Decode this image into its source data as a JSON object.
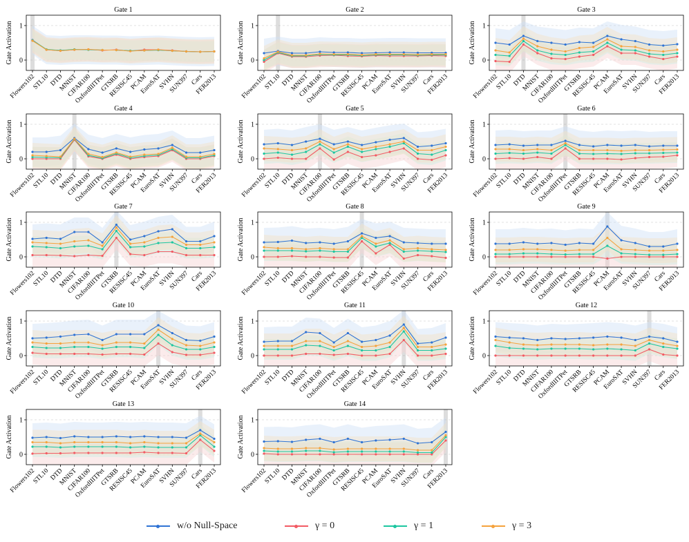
{
  "colors": {
    "wo": "#2f73d4",
    "g0": "#f25a63",
    "g1": "#1cc6a0",
    "g3": "#f5a23c",
    "band_wo": "#cfe0f7",
    "band_g0": "#f7d3d3",
    "band_g1": "#cdeee3",
    "band_g3": "#f5e2c6",
    "highlight": "#9e9e9e",
    "grid": "#d6d6d6"
  },
  "legend": {
    "wo": "w/o Null-Space",
    "g0": "γ = 0",
    "g1": "γ = 1",
    "g3": "γ = 3"
  },
  "chart_data": {
    "type": "line",
    "ylabel": "Gate Activation",
    "ylim": [
      -0.3,
      1.3
    ],
    "yticks": [
      0,
      1
    ],
    "categories": [
      "Flowers102",
      "STL10",
      "DTD",
      "MNIST",
      "CIFAR100",
      "OxfordIIITPet",
      "GTSRB",
      "RESISC45",
      "PCAM",
      "EuroSAT",
      "SVHN",
      "SUN397",
      "Cars",
      "FER2013"
    ],
    "series_names": [
      "w/o Null-Space",
      "γ = 0",
      "γ = 1",
      "γ = 3"
    ],
    "panels": [
      {
        "title": "Gate 1",
        "highlight": 0,
        "series": {
          "wo": [
            0.58,
            0.3,
            0.28,
            0.3,
            0.3,
            0.29,
            0.29,
            0.27,
            0.28,
            0.29,
            0.27,
            0.25,
            0.24,
            0.25
          ],
          "g0": [
            0.57,
            0.3,
            0.27,
            0.3,
            0.31,
            0.28,
            0.3,
            0.26,
            0.3,
            0.3,
            0.28,
            0.25,
            0.24,
            0.25
          ],
          "g1": [
            0.57,
            0.31,
            0.28,
            0.31,
            0.3,
            0.29,
            0.29,
            0.27,
            0.28,
            0.29,
            0.27,
            0.25,
            0.24,
            0.25
          ],
          "g3": [
            0.56,
            0.3,
            0.27,
            0.3,
            0.31,
            0.29,
            0.29,
            0.26,
            0.28,
            0.3,
            0.27,
            0.25,
            0.24,
            0.25
          ]
        }
      },
      {
        "title": "Gate 2",
        "highlight": 1,
        "series": {
          "wo": [
            0.2,
            0.26,
            0.2,
            0.2,
            0.24,
            0.22,
            0.22,
            0.2,
            0.21,
            0.22,
            0.22,
            0.21,
            0.21,
            0.21
          ],
          "g0": [
            -0.05,
            0.2,
            0.1,
            0.1,
            0.13,
            0.14,
            0.12,
            0.11,
            0.13,
            0.12,
            0.12,
            0.12,
            0.13,
            0.12
          ],
          "g1": [
            0.0,
            0.22,
            0.12,
            0.12,
            0.16,
            0.15,
            0.15,
            0.13,
            0.15,
            0.15,
            0.15,
            0.14,
            0.15,
            0.15
          ],
          "g3": [
            0.05,
            0.24,
            0.14,
            0.14,
            0.18,
            0.17,
            0.17,
            0.15,
            0.17,
            0.17,
            0.17,
            0.16,
            0.17,
            0.17
          ]
        }
      },
      {
        "title": "Gate 3",
        "highlight": 2,
        "series": {
          "wo": [
            0.5,
            0.45,
            0.7,
            0.55,
            0.5,
            0.45,
            0.52,
            0.5,
            0.7,
            0.6,
            0.55,
            0.45,
            0.42,
            0.46
          ],
          "g0": [
            -0.03,
            -0.05,
            0.45,
            0.2,
            0.05,
            0.03,
            0.1,
            0.15,
            0.4,
            0.2,
            0.2,
            0.1,
            0.03,
            0.1
          ],
          "g1": [
            0.15,
            0.12,
            0.55,
            0.28,
            0.18,
            0.15,
            0.22,
            0.25,
            0.5,
            0.3,
            0.28,
            0.18,
            0.15,
            0.2
          ],
          "g3": [
            0.28,
            0.22,
            0.62,
            0.4,
            0.3,
            0.25,
            0.35,
            0.38,
            0.6,
            0.4,
            0.38,
            0.28,
            0.25,
            0.3
          ]
        }
      },
      {
        "title": "Gate 4",
        "highlight": 3,
        "series": {
          "wo": [
            0.2,
            0.2,
            0.25,
            0.6,
            0.28,
            0.18,
            0.3,
            0.2,
            0.27,
            0.3,
            0.4,
            0.18,
            0.18,
            0.25
          ],
          "g0": [
            0.0,
            0.0,
            0.0,
            0.55,
            0.07,
            0.0,
            0.12,
            0.0,
            0.05,
            0.08,
            0.25,
            0.0,
            0.0,
            0.08
          ],
          "g1": [
            0.05,
            0.04,
            0.03,
            0.57,
            0.1,
            0.02,
            0.15,
            0.03,
            0.08,
            0.11,
            0.28,
            0.03,
            0.03,
            0.1
          ],
          "g3": [
            0.1,
            0.08,
            0.06,
            0.58,
            0.14,
            0.05,
            0.18,
            0.06,
            0.12,
            0.14,
            0.32,
            0.06,
            0.06,
            0.14
          ]
        }
      },
      {
        "title": "Gate 5",
        "highlight": 4,
        "series": {
          "wo": [
            0.42,
            0.45,
            0.4,
            0.5,
            0.58,
            0.42,
            0.5,
            0.4,
            0.48,
            0.55,
            0.6,
            0.35,
            0.38,
            0.45
          ],
          "g0": [
            0.0,
            0.03,
            0.0,
            0.0,
            0.3,
            -0.02,
            0.2,
            0.05,
            0.1,
            0.2,
            0.3,
            0.0,
            -0.03,
            0.1
          ],
          "g1": [
            0.15,
            0.18,
            0.12,
            0.2,
            0.42,
            0.18,
            0.35,
            0.2,
            0.28,
            0.35,
            0.45,
            0.15,
            0.12,
            0.25
          ],
          "g3": [
            0.3,
            0.28,
            0.25,
            0.3,
            0.5,
            0.28,
            0.42,
            0.28,
            0.35,
            0.42,
            0.5,
            0.25,
            0.25,
            0.35
          ]
        }
      },
      {
        "title": "Gate 6",
        "highlight": 5,
        "series": {
          "wo": [
            0.4,
            0.42,
            0.38,
            0.4,
            0.4,
            0.52,
            0.4,
            0.36,
            0.4,
            0.38,
            0.4,
            0.36,
            0.38,
            0.38
          ],
          "g0": [
            0.0,
            0.02,
            0.0,
            0.05,
            0.0,
            0.3,
            0.0,
            0.0,
            0.0,
            -0.02,
            0.02,
            0.05,
            0.06,
            0.1
          ],
          "g1": [
            0.15,
            0.17,
            0.15,
            0.18,
            0.15,
            0.4,
            0.15,
            0.14,
            0.15,
            0.14,
            0.16,
            0.16,
            0.17,
            0.18
          ],
          "g3": [
            0.28,
            0.28,
            0.25,
            0.28,
            0.25,
            0.45,
            0.25,
            0.25,
            0.25,
            0.23,
            0.25,
            0.25,
            0.26,
            0.27
          ]
        }
      },
      {
        "title": "Gate 7",
        "highlight": 6,
        "series": {
          "wo": [
            0.52,
            0.55,
            0.52,
            0.72,
            0.72,
            0.42,
            0.93,
            0.5,
            0.6,
            0.74,
            0.8,
            0.45,
            0.45,
            0.6
          ],
          "g0": [
            0.05,
            0.05,
            0.04,
            0.02,
            0.05,
            0.03,
            0.55,
            0.08,
            0.05,
            0.15,
            0.15,
            0.05,
            0.05,
            0.05
          ],
          "g1": [
            0.3,
            0.28,
            0.25,
            0.3,
            0.32,
            0.22,
            0.75,
            0.28,
            0.3,
            0.4,
            0.42,
            0.25,
            0.25,
            0.28
          ],
          "g3": [
            0.42,
            0.4,
            0.38,
            0.45,
            0.48,
            0.32,
            0.85,
            0.38,
            0.42,
            0.55,
            0.58,
            0.35,
            0.35,
            0.42
          ]
        }
      },
      {
        "title": "Gate 8",
        "highlight": 7,
        "series": {
          "wo": [
            0.42,
            0.43,
            0.47,
            0.4,
            0.42,
            0.38,
            0.45,
            0.68,
            0.55,
            0.6,
            0.42,
            0.4,
            0.38,
            0.38
          ],
          "g0": [
            0.0,
            0.0,
            0.02,
            0.0,
            0.0,
            -0.02,
            -0.02,
            0.45,
            0.1,
            0.35,
            -0.05,
            0.05,
            0.02,
            -0.03
          ],
          "g1": [
            0.18,
            0.18,
            0.18,
            0.16,
            0.18,
            0.15,
            0.15,
            0.55,
            0.3,
            0.4,
            0.15,
            0.18,
            0.16,
            0.14
          ],
          "g3": [
            0.28,
            0.25,
            0.25,
            0.22,
            0.25,
            0.22,
            0.22,
            0.6,
            0.38,
            0.48,
            0.22,
            0.25,
            0.22,
            0.2
          ]
        }
      },
      {
        "title": "Gate 9",
        "highlight": 8,
        "series": {
          "wo": [
            0.38,
            0.38,
            0.42,
            0.38,
            0.4,
            0.35,
            0.4,
            0.38,
            0.88,
            0.48,
            0.4,
            0.3,
            0.3,
            0.38
          ],
          "g0": [
            0.0,
            0.0,
            0.0,
            0.0,
            0.0,
            0.0,
            0.0,
            0.0,
            -0.05,
            0.0,
            0.0,
            0.0,
            0.0,
            0.0
          ],
          "g1": [
            0.08,
            0.08,
            0.1,
            0.1,
            0.08,
            0.07,
            0.08,
            0.08,
            0.32,
            0.1,
            0.08,
            0.06,
            0.06,
            0.08
          ],
          "g3": [
            0.2,
            0.2,
            0.22,
            0.22,
            0.2,
            0.18,
            0.2,
            0.2,
            0.55,
            0.22,
            0.2,
            0.18,
            0.18,
            0.2
          ]
        }
      },
      {
        "title": "Gate 10",
        "highlight": 9,
        "series": {
          "wo": [
            0.5,
            0.52,
            0.55,
            0.6,
            0.62,
            0.45,
            0.62,
            0.62,
            0.62,
            0.88,
            0.65,
            0.45,
            0.43,
            0.55
          ],
          "g0": [
            0.08,
            0.05,
            0.05,
            0.05,
            0.05,
            0.03,
            0.05,
            0.05,
            0.03,
            0.35,
            0.1,
            0.02,
            0.02,
            0.08
          ],
          "g1": [
            0.25,
            0.22,
            0.22,
            0.25,
            0.25,
            0.2,
            0.25,
            0.25,
            0.22,
            0.6,
            0.3,
            0.18,
            0.18,
            0.25
          ],
          "g3": [
            0.38,
            0.35,
            0.35,
            0.38,
            0.38,
            0.3,
            0.38,
            0.38,
            0.35,
            0.75,
            0.48,
            0.3,
            0.28,
            0.38
          ]
        }
      },
      {
        "title": "Gate 11",
        "highlight": 10,
        "series": {
          "wo": [
            0.4,
            0.42,
            0.42,
            0.68,
            0.65,
            0.38,
            0.65,
            0.4,
            0.45,
            0.58,
            0.9,
            0.35,
            0.38,
            0.52
          ],
          "g0": [
            0.0,
            0.0,
            0.0,
            0.05,
            0.05,
            0.02,
            0.05,
            0.0,
            0.0,
            0.05,
            0.45,
            0.0,
            0.0,
            0.05
          ],
          "g1": [
            0.18,
            0.18,
            0.18,
            0.3,
            0.28,
            0.15,
            0.28,
            0.15,
            0.15,
            0.25,
            0.7,
            0.15,
            0.15,
            0.2
          ],
          "g3": [
            0.28,
            0.28,
            0.28,
            0.42,
            0.42,
            0.25,
            0.42,
            0.25,
            0.28,
            0.38,
            0.8,
            0.25,
            0.25,
            0.32
          ]
        }
      },
      {
        "title": "Gate 12",
        "highlight": 11,
        "series": {
          "wo": [
            0.55,
            0.52,
            0.5,
            0.45,
            0.5,
            0.48,
            0.5,
            0.52,
            0.55,
            0.52,
            0.45,
            0.55,
            0.5,
            0.4
          ],
          "g0": [
            0.0,
            0.0,
            0.0,
            0.0,
            0.0,
            0.0,
            0.0,
            0.0,
            0.0,
            0.0,
            0.0,
            0.18,
            0.03,
            0.0
          ],
          "g1": [
            0.28,
            0.22,
            0.2,
            0.18,
            0.2,
            0.2,
            0.2,
            0.18,
            0.2,
            0.18,
            0.15,
            0.35,
            0.25,
            0.2
          ],
          "g3": [
            0.45,
            0.38,
            0.32,
            0.3,
            0.32,
            0.32,
            0.32,
            0.3,
            0.32,
            0.32,
            0.28,
            0.45,
            0.35,
            0.28
          ]
        }
      },
      {
        "title": "Gate 13",
        "highlight": 12,
        "series": {
          "wo": [
            0.48,
            0.5,
            0.47,
            0.52,
            0.5,
            0.5,
            0.52,
            0.5,
            0.52,
            0.5,
            0.5,
            0.48,
            0.7,
            0.45
          ],
          "g0": [
            0.02,
            0.03,
            0.03,
            0.04,
            0.04,
            0.04,
            0.04,
            0.04,
            0.06,
            0.04,
            0.04,
            0.03,
            0.42,
            0.1
          ],
          "g1": [
            0.22,
            0.22,
            0.2,
            0.22,
            0.22,
            0.22,
            0.22,
            0.2,
            0.22,
            0.2,
            0.2,
            0.2,
            0.55,
            0.22
          ],
          "g3": [
            0.35,
            0.35,
            0.32,
            0.35,
            0.35,
            0.35,
            0.35,
            0.32,
            0.35,
            0.32,
            0.32,
            0.32,
            0.6,
            0.35
          ]
        }
      },
      {
        "title": "Gate 14",
        "highlight": 13,
        "series": {
          "wo": [
            0.37,
            0.38,
            0.36,
            0.42,
            0.45,
            0.35,
            0.45,
            0.35,
            0.4,
            0.42,
            0.45,
            0.32,
            0.35,
            0.65
          ],
          "g0": [
            0.02,
            0.0,
            0.0,
            0.0,
            0.0,
            0.0,
            0.0,
            0.0,
            0.0,
            0.0,
            0.0,
            0.0,
            0.0,
            0.4
          ],
          "g1": [
            0.1,
            0.08,
            0.08,
            0.1,
            0.1,
            0.06,
            0.08,
            0.08,
            0.08,
            0.08,
            0.08,
            0.05,
            0.05,
            0.5
          ],
          "g3": [
            0.18,
            0.16,
            0.16,
            0.18,
            0.18,
            0.14,
            0.16,
            0.16,
            0.16,
            0.16,
            0.16,
            0.12,
            0.12,
            0.55
          ]
        }
      }
    ]
  }
}
